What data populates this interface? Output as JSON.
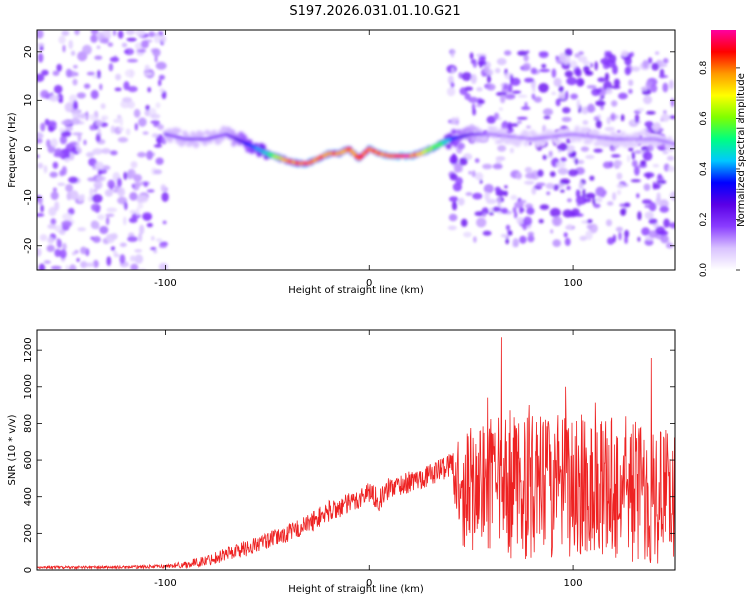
{
  "title": "S197.2026.031.01.10.G21",
  "chart_data": [
    {
      "type": "heatmap",
      "xlabel": "Height of straight line (km)",
      "ylabel": "Frequency (Hz)",
      "xlim": [
        -163,
        150
      ],
      "ylim": [
        -25,
        24.5
      ],
      "xticks": [
        -100,
        0,
        100
      ],
      "xtick_labels": [
        "-100",
        "0",
        "100"
      ],
      "yticks": [
        -20,
        -10,
        0,
        10,
        20
      ],
      "ytick_labels": [
        "-20",
        "-10",
        "0",
        "10",
        "20"
      ],
      "colorbar": {
        "label": "Normalized spectral amplitude",
        "range": [
          0,
          0.95
        ],
        "ticks": [
          0.0,
          0.2,
          0.4,
          0.6,
          0.8
        ],
        "tick_labels": [
          "0.0",
          "0.2",
          "0.4",
          "0.6",
          "0.8"
        ],
        "colormap": [
          "#ffffff",
          "#d9c2ff",
          "#8a3dff",
          "#5a00e6",
          "#0000ff",
          "#00c8ff",
          "#00ff80",
          "#80ff00",
          "#ffff00",
          "#ff9900",
          "#ff0000",
          "#ff00a0"
        ]
      },
      "ridge": {
        "x": [
          -100,
          -90,
          -80,
          -70,
          -60,
          -50,
          -40,
          -35,
          -30,
          -25,
          -20,
          -15,
          -10,
          -5,
          0,
          5,
          10,
          15,
          20,
          25,
          30,
          40,
          50,
          60,
          80,
          100,
          120,
          140,
          150
        ],
        "y": [
          3,
          2,
          2,
          3,
          1,
          -1,
          -2.5,
          -3,
          -3,
          -2,
          -1,
          -1,
          0,
          -2,
          0,
          -1,
          -1.5,
          -1.5,
          -1.5,
          -1,
          0,
          2,
          3,
          3,
          2,
          3,
          2,
          2,
          1
        ]
      },
      "ridge_peak_amplitude": {
        "x": [
          -100,
          -70,
          -50,
          -40,
          -30,
          -10,
          0,
          20,
          30,
          45,
          60,
          100,
          150
        ],
        "a": [
          0.2,
          0.2,
          0.5,
          0.85,
          0.9,
          0.85,
          0.9,
          0.95,
          0.7,
          0.3,
          0.15,
          0.15,
          0.15
        ]
      },
      "noise_regions": [
        {
          "x": [
            -163,
            -100
          ],
          "y": [
            -25,
            24.5
          ],
          "amplitude": 0.1
        },
        {
          "x": [
            40,
            150
          ],
          "y": [
            -20,
            20
          ],
          "amplitude": 0.12
        }
      ]
    },
    {
      "type": "line",
      "xlabel": "Height of straight line (km)",
      "ylabel": "SNR (10 * v/v)",
      "xlim": [
        -163,
        150
      ],
      "ylim": [
        0,
        1310
      ],
      "xticks": [
        -100,
        0,
        100
      ],
      "xtick_labels": [
        "-100",
        "0",
        "100"
      ],
      "yticks": [
        0,
        200,
        400,
        600,
        800,
        1000,
        1200
      ],
      "ytick_labels": [
        "0",
        "200",
        "400",
        "600",
        "800",
        "1000",
        "1200"
      ],
      "line_color": "#ee2222",
      "envelope_x": [
        -163,
        -120,
        -100,
        -90,
        -80,
        -70,
        -60,
        -50,
        -40,
        -30,
        -20,
        -10,
        -5,
        0,
        5,
        10,
        20,
        30,
        40,
        45,
        60,
        80,
        100,
        120,
        140,
        150
      ],
      "envelope_mean": [
        15,
        15,
        20,
        30,
        50,
        90,
        120,
        160,
        200,
        250,
        320,
        360,
        390,
        430,
        380,
        450,
        480,
        520,
        580,
        450,
        450,
        450,
        450,
        450,
        420,
        420
      ],
      "envelope_spread": [
        8,
        8,
        10,
        20,
        30,
        40,
        45,
        45,
        50,
        55,
        60,
        60,
        60,
        60,
        60,
        60,
        60,
        60,
        70,
        320,
        380,
        400,
        400,
        400,
        400,
        350
      ]
    }
  ]
}
